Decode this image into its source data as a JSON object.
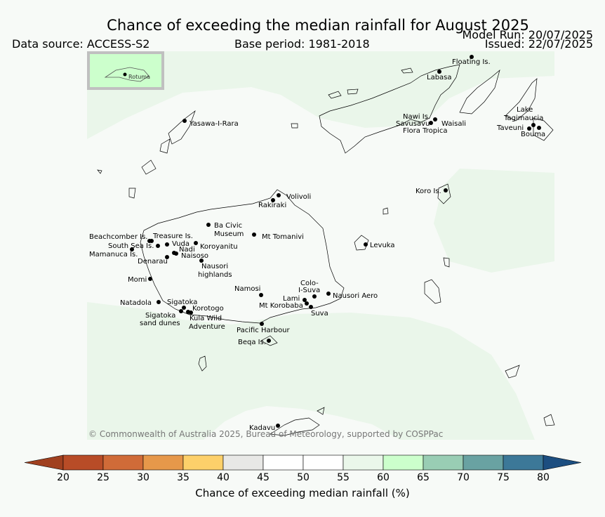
{
  "title": "Chance of exceeding the median rainfall for August 2025",
  "data_source": "Data source: ACCESS-S2",
  "base_period": "Base period: 1981-2018",
  "model_run": "Model Run: 20/07/2025",
  "issued": "Issued: 22/07/2025",
  "copyright": "© Commonwealth of Australia 2025, Bureau of Meteorology, supported by COSPPac",
  "inset_label": "Rotuma",
  "colorbar": {
    "title": "Chance of exceeding median rainfall (%)",
    "ticks": [
      "20",
      "25",
      "30",
      "35",
      "40",
      "45",
      "50",
      "55",
      "60",
      "65",
      "70",
      "75",
      "80"
    ],
    "colors": [
      "#a0401f",
      "#b84c27",
      "#d06b38",
      "#e6984a",
      "#fdd06a",
      "#e8e8e6",
      "#ffffff",
      "#ffffff",
      "#eaf7ea",
      "#ccffcc",
      "#99cdb4",
      "#69a2a2",
      "#3c7898",
      "#1c4e80"
    ]
  },
  "places": [
    {
      "name": "Floating Is."
    },
    {
      "name": "Labasa"
    },
    {
      "name": "Yasawa-I-Rara"
    },
    {
      "name": "Nawi Is."
    },
    {
      "name": "Savusavu"
    },
    {
      "name": "Waisali"
    },
    {
      "name": "Flora Tropica"
    },
    {
      "name": "Lake"
    },
    {
      "name": "Tagimaucia"
    },
    {
      "name": "Taveuni"
    },
    {
      "name": "Bouma"
    },
    {
      "name": "Volivoli"
    },
    {
      "name": "Rakiraki"
    },
    {
      "name": "Koro Is."
    },
    {
      "name": "Ba Civic"
    },
    {
      "name": "Museum"
    },
    {
      "name": "Mt Tomanivi"
    },
    {
      "name": "Beachcomber Is."
    },
    {
      "name": "Treasure Is."
    },
    {
      "name": "South Sea Is."
    },
    {
      "name": "Vuda"
    },
    {
      "name": "Koroyanitu"
    },
    {
      "name": "Nadi"
    },
    {
      "name": "Mamanuca Is."
    },
    {
      "name": "Naisoso"
    },
    {
      "name": "Levuka"
    },
    {
      "name": "Denarau"
    },
    {
      "name": "Nausori"
    },
    {
      "name": "highlands"
    },
    {
      "name": "Momi"
    },
    {
      "name": "Colo-"
    },
    {
      "name": "I-Suva"
    },
    {
      "name": "Namosi"
    },
    {
      "name": "Nausori Aero"
    },
    {
      "name": "Lami"
    },
    {
      "name": "Natadola"
    },
    {
      "name": "Sigatoka"
    },
    {
      "name": "Mt Korobaba"
    },
    {
      "name": "Korotogo"
    },
    {
      "name": "Suva"
    },
    {
      "name": "Sigatoka"
    },
    {
      "name": "Kula Wild"
    },
    {
      "name": "sand dunes"
    },
    {
      "name": "Adventure"
    },
    {
      "name": "Pacific Harbour"
    },
    {
      "name": "Beqa Is."
    },
    {
      "name": "Kadavu"
    }
  ]
}
